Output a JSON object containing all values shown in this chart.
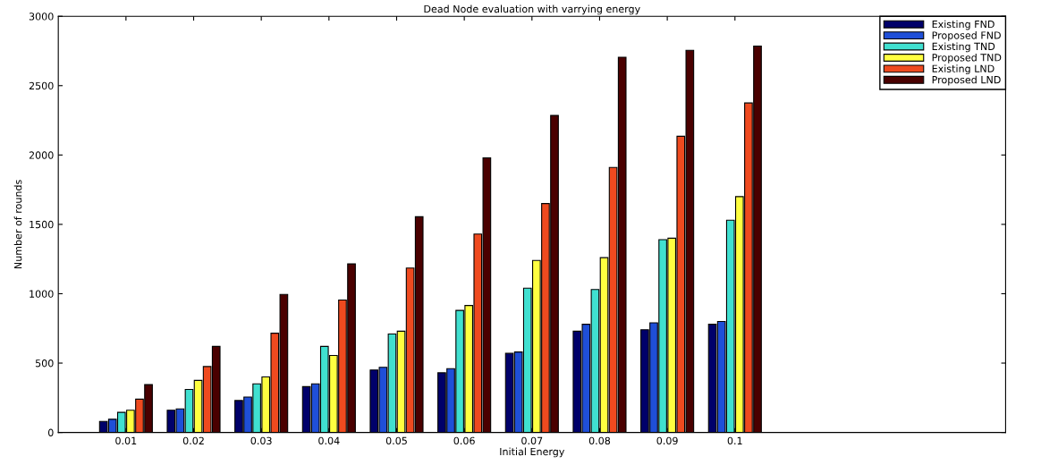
{
  "chart_data": {
    "type": "bar",
    "title": "Dead Node evaluation with varrying energy",
    "xlabel": "Initial Energy",
    "ylabel": "Number of rounds",
    "categories": [
      "0.01",
      "0.02",
      "0.03",
      "0.04",
      "0.05",
      "0.06",
      "0.07",
      "0.08",
      "0.09",
      "0.1"
    ],
    "series": [
      {
        "name": "Existing FND",
        "color": "#00006a",
        "values": [
          80,
          160,
          230,
          330,
          450,
          430,
          570,
          730,
          740,
          780
        ]
      },
      {
        "name": "Proposed FND",
        "color": "#1f4fd8",
        "values": [
          95,
          170,
          255,
          350,
          470,
          460,
          580,
          780,
          790,
          800
        ]
      },
      {
        "name": "Existing TND",
        "color": "#40e0d0",
        "values": [
          145,
          310,
          350,
          620,
          710,
          880,
          1040,
          1030,
          1390,
          1530
        ]
      },
      {
        "name": "Proposed TND",
        "color": "#ffff40",
        "values": [
          160,
          375,
          400,
          555,
          730,
          915,
          1240,
          1260,
          1400,
          1700
        ]
      },
      {
        "name": "Existing LND",
        "color": "#ef4a1f",
        "values": [
          240,
          475,
          715,
          955,
          1185,
          1430,
          1650,
          1910,
          2135,
          2375
        ]
      },
      {
        "name": "Proposed LND",
        "color": "#4a0000",
        "values": [
          345,
          620,
          995,
          1215,
          1555,
          1980,
          2285,
          2705,
          2755,
          2785
        ]
      }
    ],
    "ylim": [
      0,
      3000
    ],
    "yticks": [
      0,
      500,
      1000,
      1500,
      2000,
      2500,
      3000
    ],
    "grid": false,
    "legend": "top right"
  }
}
